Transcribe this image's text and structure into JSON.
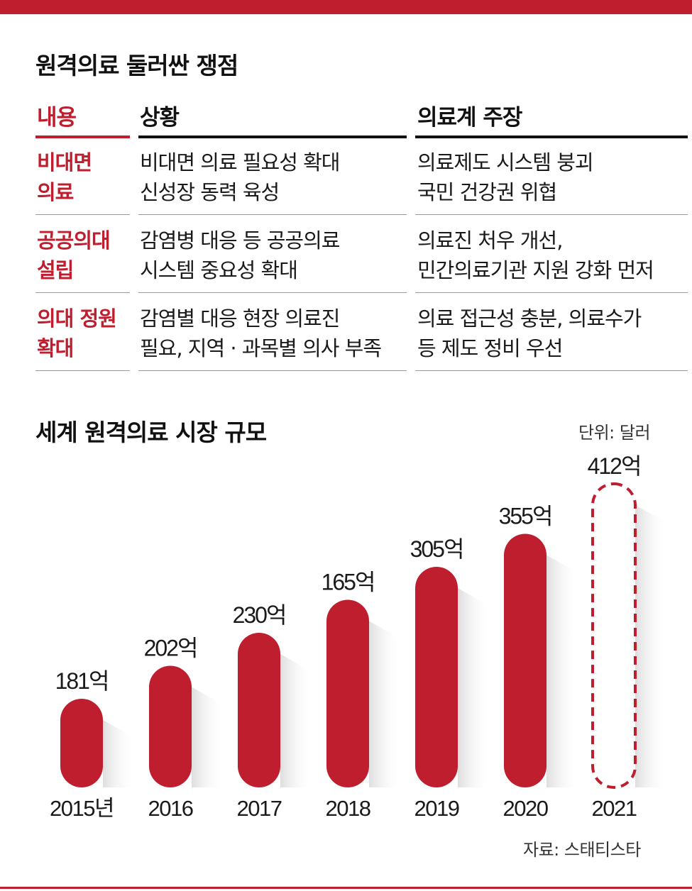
{
  "colors": {
    "accent": "#bf1e2e",
    "text": "#1a1a1a"
  },
  "table_section": {
    "title": "원격의료 둘러싼 쟁점",
    "headers": [
      "내용",
      "상황",
      "의료계 주장"
    ],
    "rows": [
      {
        "topic": [
          "비대면",
          "의료"
        ],
        "situation": [
          "비대면 의료 필요성 확대",
          "신성장 동력 육성"
        ],
        "claim": [
          "의료제도 시스템 붕괴",
          "국민  건강권 위협"
        ]
      },
      {
        "topic": [
          "공공의대",
          "설립"
        ],
        "situation": [
          "감염병 대응 등 공공의료",
          "시스템 중요성 확대"
        ],
        "claim": [
          "의료진 처우 개선,",
          "민간의료기관 지원 강화 먼저"
        ]
      },
      {
        "topic": [
          "의대 정원",
          "확대"
        ],
        "situation": [
          "감염별 대응 현장 의료진",
          "필요, 지역 · 과목별 의사 부족"
        ],
        "claim": [
          "의료 접근성 충분, 의료수가",
          "등 제도 정비 우선"
        ]
      }
    ]
  },
  "chart_section": {
    "title": "세계 원격의료 시장 규모",
    "unit": "단위: 달러",
    "source": "자료: 스태티스타"
  },
  "chart_data": {
    "type": "bar",
    "title": "세계 원격의료 시장 규모",
    "unit": "단위: 달러",
    "categories": [
      "2015년",
      "2016",
      "2017",
      "2018",
      "2019",
      "2020",
      "2021"
    ],
    "values": [
      181,
      202,
      230,
      165,
      305,
      355,
      412
    ],
    "value_labels": [
      "181억",
      "202억",
      "230억",
      "165억",
      "305억",
      "355억",
      "412억"
    ],
    "projected": [
      false,
      false,
      false,
      false,
      false,
      false,
      true
    ],
    "grid": false,
    "legend": "none"
  }
}
